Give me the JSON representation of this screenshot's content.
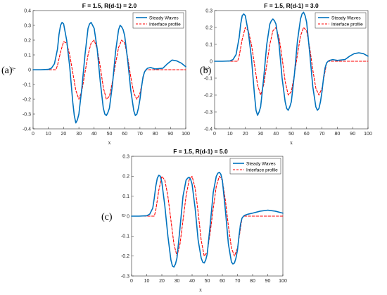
{
  "figure": {
    "series_colors": {
      "steady": "#0072BD",
      "interface": "#FF0000"
    }
  },
  "chart_data": [
    {
      "type": "line",
      "panel_label": "(a)",
      "title": "F = 1.5, R(d-1) = 2.0",
      "xlabel": "x",
      "ylabel": "η",
      "xlim": [
        0,
        100
      ],
      "ylim": [
        -0.4,
        0.4
      ],
      "xticks": [
        "0",
        "10",
        "20",
        "30",
        "40",
        "50",
        "60",
        "70",
        "80",
        "90",
        "100"
      ],
      "yticks": [
        "-0.4",
        "-0.3",
        "-0.2",
        "-0.1",
        "0",
        "0.1",
        "0.2",
        "0.3",
        "0.4"
      ],
      "legend_position": "top-right",
      "grid": false,
      "series": [
        {
          "name": "Steady Waves",
          "style": "solid",
          "color": "#0072BD",
          "x": [
            0,
            5,
            10,
            12,
            14,
            16,
            17,
            18,
            19,
            20,
            22,
            24,
            26,
            27,
            28,
            29,
            30,
            32,
            34,
            36,
            37,
            38,
            39,
            40,
            42,
            44,
            46,
            47,
            48,
            49,
            50,
            52,
            54,
            56,
            57,
            58,
            59,
            60,
            62,
            64,
            66,
            67,
            68,
            69,
            70,
            71,
            72,
            73,
            74,
            75,
            77,
            80,
            85,
            88,
            91,
            94,
            97,
            100
          ],
          "y": [
            0,
            0,
            0.002,
            0.01,
            0.04,
            0.14,
            0.24,
            0.3,
            0.32,
            0.31,
            0.2,
            0.02,
            -0.22,
            -0.31,
            -0.36,
            -0.34,
            -0.3,
            -0.12,
            0.1,
            0.28,
            0.31,
            0.32,
            0.3,
            0.28,
            0.14,
            -0.08,
            -0.26,
            -0.3,
            -0.31,
            -0.29,
            -0.26,
            -0.1,
            0.12,
            0.27,
            0.3,
            0.29,
            0.27,
            0.23,
            0.06,
            -0.14,
            -0.28,
            -0.31,
            -0.3,
            -0.26,
            -0.2,
            -0.12,
            -0.05,
            -0.015,
            0,
            0.01,
            0.015,
            0.005,
            0.01,
            0.04,
            0.065,
            0.06,
            0.045,
            0.02
          ]
        },
        {
          "name": "Interface profile",
          "style": "dashed",
          "color": "#FF0000",
          "x": [
            0,
            15,
            16,
            18,
            20,
            22,
            24,
            26,
            28,
            30,
            32,
            34,
            36,
            38,
            40,
            42,
            44,
            46,
            48,
            50,
            52,
            54,
            56,
            58,
            60,
            62,
            64,
            66,
            68,
            70,
            72,
            73,
            74,
            76,
            80,
            100
          ],
          "y": [
            0,
            0,
            0.03,
            0.12,
            0.19,
            0.18,
            0.1,
            -0.02,
            -0.14,
            -0.2,
            -0.14,
            -0.02,
            0.1,
            0.18,
            0.2,
            0.14,
            0.02,
            -0.12,
            -0.2,
            -0.18,
            -0.08,
            0.04,
            0.15,
            0.2,
            0.18,
            0.08,
            -0.05,
            -0.16,
            -0.2,
            -0.16,
            -0.06,
            -0.01,
            0,
            0,
            0,
            0
          ]
        }
      ]
    },
    {
      "type": "line",
      "panel_label": "(b)",
      "title": "F = 1.5, R(d-1) = 3.0",
      "xlabel": "x",
      "ylabel": "η",
      "xlim": [
        0,
        100
      ],
      "ylim": [
        -0.4,
        0.3
      ],
      "xticks": [
        "0",
        "10",
        "20",
        "30",
        "40",
        "50",
        "60",
        "70",
        "80",
        "90",
        "100"
      ],
      "yticks": [
        "-0.4",
        "-0.3",
        "-0.2",
        "-0.1",
        "0",
        "0.1",
        "0.2",
        "0.3"
      ],
      "legend_position": "top-right",
      "grid": false,
      "series": [
        {
          "name": "Steady Waves",
          "style": "solid",
          "color": "#0072BD",
          "x": [
            0,
            5,
            10,
            12,
            14,
            16,
            17,
            18,
            19,
            20,
            22,
            24,
            26,
            27,
            28,
            29,
            30,
            32,
            34,
            36,
            37,
            38,
            39,
            40,
            42,
            44,
            46,
            47,
            48,
            49,
            50,
            52,
            54,
            56,
            57,
            58,
            59,
            60,
            62,
            64,
            66,
            67,
            68,
            69,
            70,
            71,
            72,
            73,
            74,
            75,
            77,
            80,
            85,
            88,
            91,
            94,
            97,
            100
          ],
          "y": [
            0,
            0,
            0.002,
            0.01,
            0.04,
            0.14,
            0.22,
            0.27,
            0.28,
            0.27,
            0.17,
            0.02,
            -0.2,
            -0.29,
            -0.32,
            -0.3,
            -0.27,
            -0.1,
            0.1,
            0.22,
            0.24,
            0.25,
            0.24,
            0.22,
            0.1,
            -0.1,
            -0.24,
            -0.28,
            -0.29,
            -0.27,
            -0.24,
            -0.08,
            0.12,
            0.25,
            0.28,
            0.29,
            0.27,
            0.23,
            0.05,
            -0.15,
            -0.27,
            -0.29,
            -0.28,
            -0.24,
            -0.18,
            -0.1,
            -0.04,
            -0.01,
            0,
            0.005,
            0.01,
            0.005,
            0.01,
            0.03,
            0.045,
            0.05,
            0.045,
            0.03
          ]
        },
        {
          "name": "Interface profile",
          "style": "dashed",
          "color": "#FF0000",
          "x": [
            0,
            15,
            16,
            18,
            20,
            22,
            24,
            26,
            28,
            30,
            32,
            34,
            36,
            38,
            40,
            42,
            44,
            46,
            48,
            50,
            52,
            54,
            56,
            58,
            60,
            62,
            64,
            66,
            68,
            70,
            72,
            73,
            74,
            76,
            80,
            100
          ],
          "y": [
            0,
            0,
            0.03,
            0.13,
            0.2,
            0.18,
            0.1,
            -0.02,
            -0.14,
            -0.2,
            -0.14,
            -0.02,
            0.1,
            0.18,
            0.2,
            0.14,
            0.02,
            -0.12,
            -0.2,
            -0.18,
            -0.08,
            0.04,
            0.15,
            0.2,
            0.18,
            0.08,
            -0.05,
            -0.16,
            -0.2,
            -0.16,
            -0.06,
            -0.01,
            0,
            0,
            0,
            0
          ]
        }
      ]
    },
    {
      "type": "line",
      "panel_label": "(c)",
      "title": "F = 1.5, R(d-1) = 5.0",
      "xlabel": "x",
      "ylabel": "η",
      "xlim": [
        0,
        100
      ],
      "ylim": [
        -0.3,
        0.3
      ],
      "xticks": [
        "0",
        "10",
        "20",
        "30",
        "40",
        "50",
        "60",
        "70",
        "80",
        "90",
        "100"
      ],
      "yticks": [
        "-0.3",
        "-0.2",
        "-0.1",
        "0",
        "0.1",
        "0.2",
        "0.3"
      ],
      "legend_position": "top-right",
      "grid": false,
      "series": [
        {
          "name": "Steady Waves",
          "style": "solid",
          "color": "#0072BD",
          "x": [
            0,
            5,
            10,
            12,
            14,
            15,
            16,
            17,
            18,
            19,
            20,
            22,
            24,
            26,
            27,
            28,
            29,
            30,
            32,
            34,
            36,
            37,
            38,
            39,
            40,
            42,
            44,
            46,
            47,
            48,
            49,
            50,
            52,
            54,
            56,
            57,
            58,
            59,
            60,
            62,
            64,
            66,
            67,
            68,
            69,
            70,
            71,
            72,
            73,
            74,
            75,
            77,
            80,
            85,
            90,
            95,
            100
          ],
          "y": [
            0,
            0,
            0.002,
            0.01,
            0.04,
            0.09,
            0.15,
            0.19,
            0.205,
            0.2,
            0.17,
            0.05,
            -0.1,
            -0.22,
            -0.25,
            -0.255,
            -0.24,
            -0.21,
            -0.06,
            0.1,
            0.18,
            0.19,
            0.195,
            0.185,
            0.16,
            0.04,
            -0.12,
            -0.21,
            -0.23,
            -0.235,
            -0.22,
            -0.19,
            -0.04,
            0.12,
            0.2,
            0.215,
            0.22,
            0.21,
            0.18,
            0.03,
            -0.14,
            -0.23,
            -0.24,
            -0.235,
            -0.21,
            -0.17,
            -0.1,
            -0.04,
            -0.01,
            0,
            0.005,
            0.01,
            0.015,
            0.025,
            0.03,
            0.025,
            0.015
          ]
        },
        {
          "name": "Interface profile",
          "style": "dashed",
          "color": "#FF0000",
          "x": [
            0,
            15,
            16,
            18,
            20,
            22,
            24,
            26,
            28,
            30,
            32,
            34,
            36,
            38,
            40,
            42,
            44,
            46,
            48,
            50,
            52,
            54,
            56,
            58,
            60,
            62,
            64,
            66,
            68,
            70,
            72,
            73,
            74,
            76,
            80,
            100
          ],
          "y": [
            0,
            0,
            0.03,
            0.13,
            0.2,
            0.18,
            0.1,
            -0.02,
            -0.14,
            -0.2,
            -0.14,
            -0.02,
            0.1,
            0.18,
            0.2,
            0.14,
            0.02,
            -0.12,
            -0.2,
            -0.18,
            -0.08,
            0.04,
            0.15,
            0.2,
            0.18,
            0.08,
            -0.05,
            -0.16,
            -0.2,
            -0.16,
            -0.06,
            -0.01,
            0,
            0,
            0,
            0
          ]
        }
      ]
    }
  ]
}
